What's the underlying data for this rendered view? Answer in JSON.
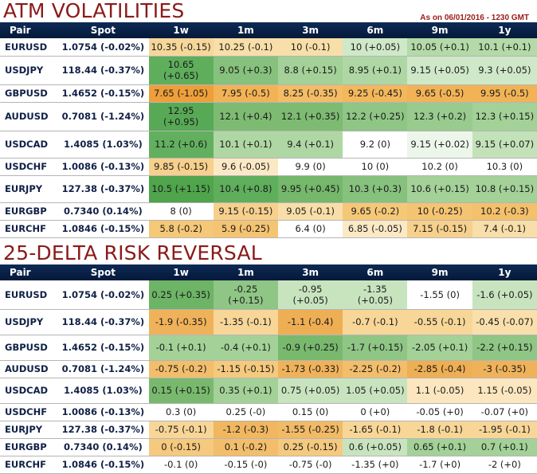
{
  "atm": {
    "title": "ATM VOLATILITIES",
    "as_of": "As on 06/01/2016 - 1230 GMT",
    "headers": [
      "Pair",
      "Spot",
      "1w",
      "1m",
      "3m",
      "6m",
      "9m",
      "1y"
    ],
    "rows": [
      {
        "pair": "EURUSD",
        "spot": "1.0754 (-0.02%)",
        "cells": [
          {
            "v": "10.35 (-0.15)",
            "c": "#f6d79a"
          },
          {
            "v": "10.25 (-0.1)",
            "c": "#f8dea8"
          },
          {
            "v": "10 (-0.1)",
            "c": "#f8dea8"
          },
          {
            "v": "10 (+0.05)",
            "c": "#cfe8c8"
          },
          {
            "v": "10.05 (+0.1)",
            "c": "#b3daa8"
          },
          {
            "v": "10.1 (+0.1)",
            "c": "#b3daa8"
          }
        ]
      },
      {
        "pair": "USDJPY",
        "spot": "118.44 (-0.37%)",
        "cells": [
          {
            "v": "10.65 (+0.65)",
            "c": "#5fae5c"
          },
          {
            "v": "9.05 (+0.3)",
            "c": "#86c17d"
          },
          {
            "v": "8.8 (+0.15)",
            "c": "#a3d198"
          },
          {
            "v": "8.95 (+0.1)",
            "c": "#afd7a4"
          },
          {
            "v": "9.15 (+0.05)",
            "c": "#cfe8c8"
          },
          {
            "v": "9.3 (+0.05)",
            "c": "#cfe8c8"
          }
        ]
      },
      {
        "pair": "GBPUSD",
        "spot": "1.4652 (-0.15%)",
        "cells": [
          {
            "v": "7.65 (-1.05)",
            "c": "#ef9f3a"
          },
          {
            "v": "7.95 (-0.5)",
            "c": "#f2b356"
          },
          {
            "v": "8.25 (-0.35)",
            "c": "#f4bc66"
          },
          {
            "v": "9.25 (-0.45)",
            "c": "#f3b75c"
          },
          {
            "v": "9.65 (-0.5)",
            "c": "#f2b356"
          },
          {
            "v": "9.95 (-0.5)",
            "c": "#f2b356"
          }
        ]
      },
      {
        "pair": "AUDUSD",
        "spot": "0.7081 (-1.24%)",
        "cells": [
          {
            "v": "12.95 (+0.95)",
            "c": "#58a955"
          },
          {
            "v": "12.1 (+0.4)",
            "c": "#7dbb72"
          },
          {
            "v": "12.1 (+0.35)",
            "c": "#7dbb72"
          },
          {
            "v": "12.2 (+0.25)",
            "c": "#8fc585"
          },
          {
            "v": "12.3 (+0.2)",
            "c": "#99cb8f"
          },
          {
            "v": "12.3 (+0.15)",
            "c": "#a3d198"
          }
        ]
      },
      {
        "pair": "USDCAD",
        "spot": "1.4085 (1.03%)",
        "cells": [
          {
            "v": "11.2 (+0.6)",
            "c": "#62b05f"
          },
          {
            "v": "10.1 (+0.1)",
            "c": "#afd7a4"
          },
          {
            "v": "9.4 (+0.1)",
            "c": "#afd7a4"
          },
          {
            "v": "9.2 (0)",
            "c": "#ffffff"
          },
          {
            "v": "9.15 (+0.02)",
            "c": "#edf6ea"
          },
          {
            "v": "9.15 (+0.07)",
            "c": "#c3e2b9"
          }
        ]
      },
      {
        "pair": "USDCHF",
        "spot": "1.0086 (-0.13%)",
        "cells": [
          {
            "v": "9.85 (-0.15)",
            "c": "#f6d08c"
          },
          {
            "v": "9.6 (-0.05)",
            "c": "#fbe9c6"
          },
          {
            "v": "9.9 (0)",
            "c": "#ffffff"
          },
          {
            "v": "10 (0)",
            "c": "#ffffff"
          },
          {
            "v": "10.2 (0)",
            "c": "#ffffff"
          },
          {
            "v": "10.3 (0)",
            "c": "#ffffff"
          }
        ]
      },
      {
        "pair": "EURJPY",
        "spot": "127.38 (-0.37%)",
        "cells": [
          {
            "v": "10.5 (+1.15)",
            "c": "#4fa44c"
          },
          {
            "v": "10.4 (+0.8)",
            "c": "#5fae5c"
          },
          {
            "v": "9.95 (+0.45)",
            "c": "#75b76b"
          },
          {
            "v": "10.3 (+0.3)",
            "c": "#86c17d"
          },
          {
            "v": "10.6 (+0.15)",
            "c": "#a3d198"
          },
          {
            "v": "10.8 (+0.15)",
            "c": "#a3d198"
          }
        ]
      },
      {
        "pair": "EURGBP",
        "spot": "0.7340 (0.14%)",
        "cells": [
          {
            "v": "8 (0)",
            "c": "#ffffff"
          },
          {
            "v": "9.15 (-0.15)",
            "c": "#f6d08c"
          },
          {
            "v": "9.05 (-0.1)",
            "c": "#f8dea8"
          },
          {
            "v": "9.65 (-0.2)",
            "c": "#f5c878"
          },
          {
            "v": "10 (-0.25)",
            "c": "#f5c472"
          },
          {
            "v": "10.2 (-0.3)",
            "c": "#f4c06c"
          }
        ]
      },
      {
        "pair": "EURCHF",
        "spot": "1.0846 (-0.15%)",
        "cells": [
          {
            "v": "5.8 (-0.2)",
            "c": "#f5c878"
          },
          {
            "v": "5.9 (-0.25)",
            "c": "#f5c472"
          },
          {
            "v": "6.4 (0)",
            "c": "#ffffff"
          },
          {
            "v": "6.85 (-0.05)",
            "c": "#fbe9c6"
          },
          {
            "v": "7.15 (-0.15)",
            "c": "#f6d08c"
          },
          {
            "v": "7.4 (-0.1)",
            "c": "#f8dea8"
          }
        ]
      }
    ]
  },
  "rr": {
    "title": "25-DELTA RISK REVERSAL",
    "headers": [
      "Pair",
      "Spot",
      "1w",
      "1m",
      "3m",
      "6m",
      "9m",
      "1y"
    ],
    "rows": [
      {
        "pair": "EURUSD",
        "spot": "1.0754 (-0.02%)",
        "cells": [
          {
            "v": "0.25 (+0.35)",
            "c": "#6db466"
          },
          {
            "v": "-0.25 (+0.15)",
            "c": "#8fc585"
          },
          {
            "v": "-0.95 (+0.05)",
            "c": "#c8e4bf"
          },
          {
            "v": "-1.35 (+0.05)",
            "c": "#c8e4bf"
          },
          {
            "v": "-1.55 (0)",
            "c": "#ffffff"
          },
          {
            "v": "-1.6 (+0.05)",
            "c": "#c8e4bf"
          }
        ]
      },
      {
        "pair": "USDJPY",
        "spot": "118.44 (-0.37%)",
        "cells": [
          {
            "v": "-1.9 (-0.35)",
            "c": "#efb25a"
          },
          {
            "v": "-1.35 (-0.1)",
            "c": "#f7d698"
          },
          {
            "v": "-1.1 (-0.4)",
            "c": "#eeae54"
          },
          {
            "v": "-0.7 (-0.1)",
            "c": "#f7d698"
          },
          {
            "v": "-0.55 (-0.1)",
            "c": "#f7d698"
          },
          {
            "v": "-0.45 (-0.07)",
            "c": "#f9dfab"
          }
        ]
      },
      {
        "pair": "GBPUSD",
        "spot": "1.4652 (-0.15%)",
        "cells": [
          {
            "v": "-0.1 (+0.1)",
            "c": "#a3d198"
          },
          {
            "v": "-0.4 (+0.1)",
            "c": "#a3d198"
          },
          {
            "v": "-0.9 (+0.25)",
            "c": "#78b96e"
          },
          {
            "v": "-1.7 (+0.15)",
            "c": "#8fc585"
          },
          {
            "v": "-2.05 (+0.1)",
            "c": "#a3d198"
          },
          {
            "v": "-2.2 (+0.15)",
            "c": "#8fc585"
          }
        ]
      },
      {
        "pair": "AUDUSD",
        "spot": "0.7081 (-1.24%)",
        "cells": [
          {
            "v": "-0.75 (-0.2)",
            "c": "#f2be6c"
          },
          {
            "v": "-1.15 (-0.15)",
            "c": "#f5c97e"
          },
          {
            "v": "-1.73 (-0.33)",
            "c": "#efb25a"
          },
          {
            "v": "-2.25 (-0.2)",
            "c": "#f2be6c"
          },
          {
            "v": "-2.85 (-0.4)",
            "c": "#eeae54"
          },
          {
            "v": "-3 (-0.35)",
            "c": "#efb25a"
          }
        ]
      },
      {
        "pair": "USDCAD",
        "spot": "1.4085 (1.03%)",
        "cells": [
          {
            "v": "0.15 (+0.15)",
            "c": "#78b96e"
          },
          {
            "v": "0.35 (+0.1)",
            "c": "#a3d198"
          },
          {
            "v": "0.75 (+0.05)",
            "c": "#c8e4bf"
          },
          {
            "v": "1.05 (+0.05)",
            "c": "#c8e4bf"
          },
          {
            "v": "1.1 (-0.05)",
            "c": "#fbe6bf"
          },
          {
            "v": "1.15 (-0.05)",
            "c": "#fbe6bf"
          }
        ]
      },
      {
        "pair": "USDCHF",
        "spot": "1.0086 (-0.13%)",
        "cells": [
          {
            "v": "0.3 (0)",
            "c": "#ffffff"
          },
          {
            "v": "0.25 (-0)",
            "c": "#ffffff"
          },
          {
            "v": "0.15 (0)",
            "c": "#ffffff"
          },
          {
            "v": "0 (+0)",
            "c": "#ffffff"
          },
          {
            "v": "-0.05 (+0)",
            "c": "#ffffff"
          },
          {
            "v": "-0.07 (+0)",
            "c": "#ffffff"
          }
        ]
      },
      {
        "pair": "EURJPY",
        "spot": "127.38 (-0.37%)",
        "cells": [
          {
            "v": "-0.75 (-0.1)",
            "c": "#f7d698"
          },
          {
            "v": "-1.2 (-0.3)",
            "c": "#f0b660"
          },
          {
            "v": "-1.55 (-0.25)",
            "c": "#f1ba66"
          },
          {
            "v": "-1.65 (-0.1)",
            "c": "#f7d698"
          },
          {
            "v": "-1.8 (-0.1)",
            "c": "#f7d698"
          },
          {
            "v": "-1.95 (-0.1)",
            "c": "#f7d698"
          }
        ]
      },
      {
        "pair": "EURGBP",
        "spot": "0.7340 (0.14%)",
        "cells": [
          {
            "v": "0 (-0.15)",
            "c": "#f5c97e"
          },
          {
            "v": "0.1 (-0.2)",
            "c": "#f2be6c"
          },
          {
            "v": "0.25 (-0.15)",
            "c": "#f5c97e"
          },
          {
            "v": "0.6 (+0.05)",
            "c": "#c8e4bf"
          },
          {
            "v": "0.65 (+0.1)",
            "c": "#a3d198"
          },
          {
            "v": "0.7 (+0.1)",
            "c": "#a3d198"
          }
        ]
      },
      {
        "pair": "EURCHF",
        "spot": "1.0846 (-0.15%)",
        "cells": [
          {
            "v": "-0.1 (0)",
            "c": "#ffffff"
          },
          {
            "v": "-0.15 (-0)",
            "c": "#ffffff"
          },
          {
            "v": "-0.75 (-0)",
            "c": "#ffffff"
          },
          {
            "v": "-1.35 (+0)",
            "c": "#ffffff"
          },
          {
            "v": "-1.7 (+0)",
            "c": "#ffffff"
          },
          {
            "v": "-2 (+0)",
            "c": "#ffffff"
          }
        ]
      }
    ]
  }
}
